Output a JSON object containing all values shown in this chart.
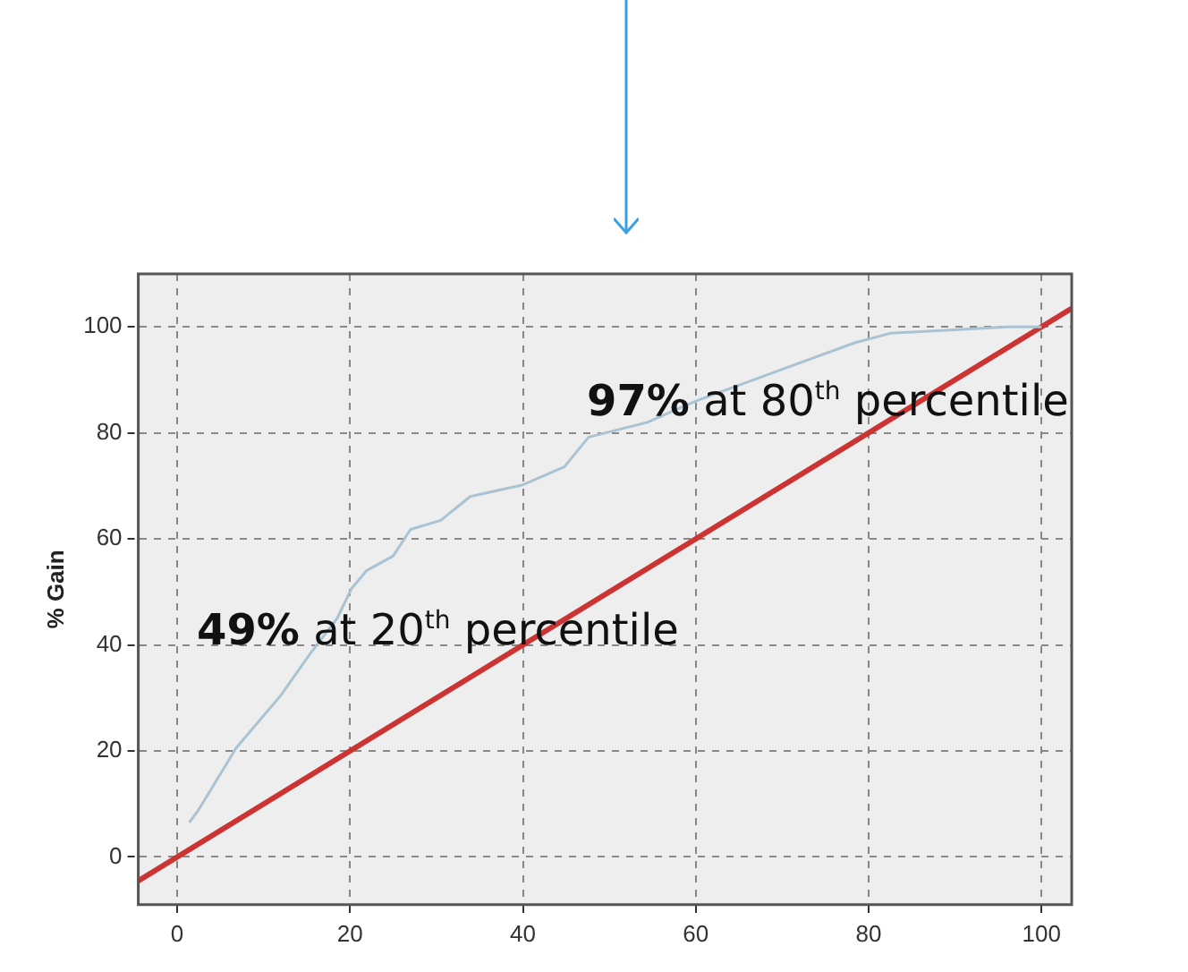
{
  "chart_data": {
    "type": "line",
    "ylabel": "% Gain",
    "xlim": [
      -4.5,
      103.5
    ],
    "ylim": [
      -9,
      110
    ],
    "xticks": [
      0,
      20,
      40,
      60,
      80,
      100
    ],
    "yticks": [
      0,
      20,
      40,
      60,
      80,
      100
    ],
    "grid": true,
    "legend": false,
    "marker": "none",
    "series": [
      {
        "color": "#a9c3d3",
        "x": [
          1.4,
          2.4,
          6.8,
          12,
          15.4,
          18.5,
          20.2,
          21.9,
          25,
          27,
          30.5,
          33.9,
          40,
          44.8,
          47.6,
          54.4,
          60,
          70,
          78.4,
          82.5,
          96,
          100
        ],
        "values": [
          6.5,
          8.7,
          20.5,
          30.5,
          38.4,
          45,
          50.7,
          54,
          56.8,
          61.8,
          63.5,
          68,
          70.2,
          73.6,
          79.2,
          82,
          86,
          92,
          97,
          98.8,
          100,
          100
        ]
      },
      {
        "color": "#cc3333",
        "x": [
          -4.5,
          103.5
        ],
        "values": [
          -4.5,
          103.5
        ]
      }
    ],
    "annotations": [
      "49% at 20$^{th}$ percentile",
      "97% at 80$^{th}$ percentile"
    ]
  }
}
